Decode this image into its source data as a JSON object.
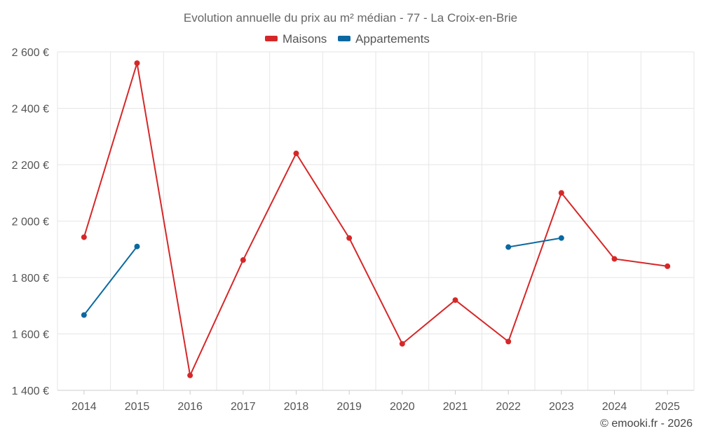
{
  "chart_data": {
    "type": "line",
    "title": "Evolution annuelle du prix au m² médian - 77 - La Croix-en-Brie",
    "xlabel": "",
    "ylabel": "",
    "categories": [
      "2014",
      "2015",
      "2016",
      "2017",
      "2018",
      "2019",
      "2020",
      "2021",
      "2022",
      "2023",
      "2024",
      "2025"
    ],
    "ylim": [
      1400,
      2600
    ],
    "yticks": [
      1400,
      1600,
      1800,
      2000,
      2200,
      2400,
      2600
    ],
    "ytick_labels": [
      "1 400 €",
      "1 600 €",
      "1 800 €",
      "2 000 €",
      "2 200 €",
      "2 400 €",
      "2 600 €"
    ],
    "legend_position": "top-center",
    "grid": true,
    "series": [
      {
        "name": "Maisons",
        "color": "#d62728",
        "values": [
          1943,
          2560,
          1453,
          1862,
          2240,
          1940,
          1565,
          1720,
          1573,
          2100,
          1866,
          1840
        ]
      },
      {
        "name": "Appartements",
        "color": "#0b68a0",
        "values": [
          1667,
          1910,
          null,
          null,
          null,
          null,
          null,
          null,
          1908,
          1940,
          null,
          null
        ]
      }
    ]
  },
  "credit": "© emooki.fr - 2026"
}
